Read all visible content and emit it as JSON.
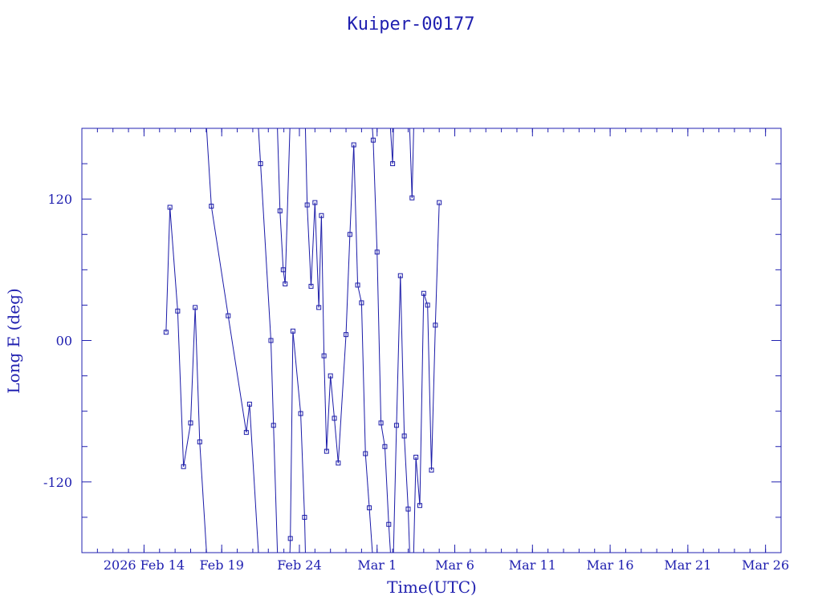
{
  "chart_data": {
    "type": "line",
    "title": "Kuiper-00177",
    "xlabel": "Time(UTC)",
    "ylabel": "Long E (deg)",
    "x_unit": "days",
    "xlim": [
      "2026-02-10",
      "2026-03-27"
    ],
    "ylim": [
      -180,
      180
    ],
    "grid": false,
    "x_ticks": [
      {
        "date": "2026-02-14",
        "label": "2026 Feb 14"
      },
      {
        "date": "2026-02-19",
        "label": "Feb 19"
      },
      {
        "date": "2026-02-24",
        "label": "Feb 24"
      },
      {
        "date": "2026-03-01",
        "label": "Mar  1"
      },
      {
        "date": "2026-03-06",
        "label": "Mar  6"
      },
      {
        "date": "2026-03-11",
        "label": "Mar 11"
      },
      {
        "date": "2026-03-16",
        "label": "Mar 16"
      },
      {
        "date": "2026-03-21",
        "label": "Mar 21"
      },
      {
        "date": "2026-03-26",
        "label": "Mar 26"
      }
    ],
    "y_ticks": [
      {
        "value": -120,
        "label": "-120"
      },
      {
        "value": 0,
        "label": "00"
      },
      {
        "value": 120,
        "label": "120"
      }
    ],
    "series": [
      {
        "color": "#1a1aa8",
        "marker": "square",
        "points": [
          [
            "2026-02-15 10:00",
            7
          ],
          [
            "2026-02-15 16:00",
            113
          ],
          [
            "2026-02-16 04:00",
            25
          ],
          [
            "2026-02-16 13:00",
            -107
          ],
          [
            "2026-02-17 00:00",
            -70
          ],
          [
            "2026-02-17 07:00",
            28
          ],
          [
            "2026-02-17 14:00",
            -86
          ],
          [
            "2026-02-18 08:00",
            114
          ],
          [
            "2026-02-19 10:00",
            21
          ],
          [
            "2026-02-20 14:00",
            -78
          ],
          [
            "2026-02-20 19:00",
            -54
          ],
          [
            "2026-02-21 12:00",
            150
          ],
          [
            "2026-02-22 04:00",
            0
          ],
          [
            "2026-02-22 08:00",
            -72
          ],
          [
            "2026-02-22 18:00",
            110
          ],
          [
            "2026-02-22 23:00",
            60
          ],
          [
            "2026-02-23 02:00",
            48
          ],
          [
            "2026-02-23 10:00",
            -168
          ],
          [
            "2026-02-23 14:00",
            8
          ],
          [
            "2026-02-24 02:00",
            -62
          ],
          [
            "2026-02-24 08:00",
            -150
          ],
          [
            "2026-02-24 12:00",
            115
          ],
          [
            "2026-02-24 18:00",
            46
          ],
          [
            "2026-02-25 00:00",
            117
          ],
          [
            "2026-02-25 06:00",
            28
          ],
          [
            "2026-02-25 10:00",
            106
          ],
          [
            "2026-02-25 14:00",
            -13
          ],
          [
            "2026-02-25 18:00",
            -94
          ],
          [
            "2026-02-26 00:00",
            -30
          ],
          [
            "2026-02-26 06:00",
            -66
          ],
          [
            "2026-02-26 12:00",
            -104
          ],
          [
            "2026-02-27 00:00",
            5
          ],
          [
            "2026-02-27 06:00",
            90
          ],
          [
            "2026-02-27 12:00",
            166
          ],
          [
            "2026-02-27 18:00",
            47
          ],
          [
            "2026-02-28 00:00",
            32
          ],
          [
            "2026-02-28 06:00",
            -96
          ],
          [
            "2026-02-28 12:00",
            -142
          ],
          [
            "2026-02-28 18:00",
            170
          ],
          [
            "2026-03-01 00:00",
            75
          ],
          [
            "2026-03-01 06:00",
            -70
          ],
          [
            "2026-03-01 12:00",
            -90
          ],
          [
            "2026-03-01 18:00",
            -156
          ],
          [
            "2026-03-02 00:00",
            150
          ],
          [
            "2026-03-02 06:00",
            -72
          ],
          [
            "2026-03-02 12:00",
            55
          ],
          [
            "2026-03-02 18:00",
            -81
          ],
          [
            "2026-03-03 00:00",
            -143
          ],
          [
            "2026-03-03 06:00",
            121
          ],
          [
            "2026-03-03 12:00",
            -99
          ],
          [
            "2026-03-03 18:00",
            -140
          ],
          [
            "2026-03-04 00:00",
            40
          ],
          [
            "2026-03-04 06:00",
            30
          ],
          [
            "2026-03-04 12:00",
            -110
          ],
          [
            "2026-03-04 18:00",
            13
          ],
          [
            "2026-03-05 00:00",
            117
          ]
        ]
      }
    ]
  }
}
